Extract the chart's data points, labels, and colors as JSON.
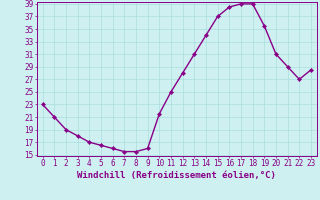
{
  "x": [
    0,
    1,
    2,
    3,
    4,
    5,
    6,
    7,
    8,
    9,
    10,
    11,
    12,
    13,
    14,
    15,
    16,
    17,
    18,
    19,
    20,
    21,
    22,
    23
  ],
  "y": [
    23,
    21,
    19,
    18,
    17,
    16.5,
    16,
    15.5,
    15.5,
    16,
    21.5,
    25,
    28,
    31,
    34,
    37,
    38.5,
    39,
    39,
    35.5,
    31,
    29,
    27,
    28.5
  ],
  "line_color": "#880088",
  "marker": "D",
  "marker_size": 2.2,
  "xlabel": "Windchill (Refroidissement éolien,°C)",
  "xlabel_fontsize": 6.5,
  "background_color": "#cff0f0",
  "grid_color": "#aadddd",
  "ylim": [
    15,
    39
  ],
  "yticks": [
    15,
    17,
    19,
    21,
    23,
    25,
    27,
    29,
    31,
    33,
    35,
    37,
    39
  ],
  "xticks": [
    0,
    1,
    2,
    3,
    4,
    5,
    6,
    7,
    8,
    9,
    10,
    11,
    12,
    13,
    14,
    15,
    16,
    17,
    18,
    19,
    20,
    21,
    22,
    23
  ],
  "tick_fontsize": 5.5,
  "tick_color": "#880088",
  "spine_color": "#880088",
  "line_width": 1.0
}
